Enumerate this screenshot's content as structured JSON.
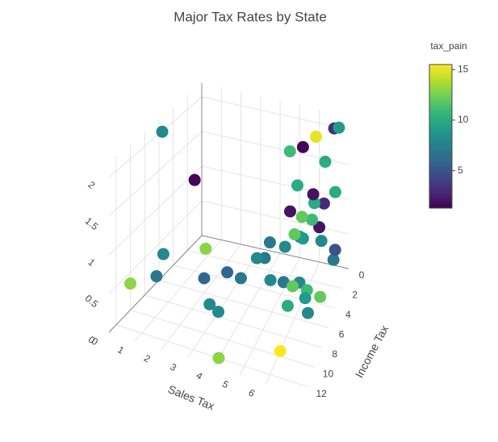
{
  "chart_data": {
    "type": "scatter3d",
    "title": "Major Tax Rates by State",
    "xlabel": "Sales Tax",
    "ylabel": "Income Tax",
    "x": [
      5.6,
      5.0,
      6.0,
      6.2,
      5.5,
      6.5,
      4.5,
      4.0,
      6.8,
      7.0,
      6.9,
      6.0,
      5.0,
      4.5,
      4.0,
      3.5,
      3.0,
      2.5,
      5.5,
      6.5,
      5.8,
      4.8,
      6.3,
      5.2,
      6.0,
      5.6,
      5.0,
      4.5,
      6.5,
      6.8,
      6.0,
      5.5,
      7.0,
      6.2,
      7.0,
      0.3,
      0.0,
      1.5,
      0.0,
      0.5,
      0.5,
      2.0,
      2.5,
      3.0,
      6.0,
      6.0,
      4.0
    ],
    "y": [
      2.8,
      3.5,
      3.0,
      4.5,
      5.0,
      5.5,
      4.0,
      3.0,
      4.0,
      1.5,
      0.5,
      0.0,
      0.0,
      1.0,
      2.0,
      2.5,
      3.5,
      4.0,
      1.5,
      2.0,
      0.8,
      1.2,
      0.3,
      2.0,
      1.2,
      2.2,
      0.5,
      0.0,
      1.0,
      0.2,
      0.8,
      1.5,
      0.0,
      2.5,
      1.0,
      6.5,
      1.0,
      4.0,
      10.0,
      7.0,
      8.0,
      6.0,
      7.0,
      7.5,
      9.5,
      6.5,
      12.0
    ],
    "z": [
      0.05,
      0.1,
      0.0,
      0.1,
      0.0,
      0.05,
      0.15,
      0.3,
      0.1,
      0.3,
      0.3,
      0.5,
      0.3,
      0.25,
      0.4,
      0.2,
      0.0,
      0.1,
      0.5,
      0.6,
      0.7,
      0.8,
      0.9,
      0.6,
      1.0,
      0.9,
      1.1,
      1.5,
      1.6,
      2.0,
      1.9,
      1.8,
      2.0,
      1.3,
      1.2,
      2.1,
      0.9,
      0.35,
      0.35,
      0.5,
      0.3,
      0.2,
      0.0,
      0.0,
      0.0,
      0.5,
      0.0
    ],
    "color_values": [
      8,
      7,
      11,
      9,
      10,
      8,
      8,
      7,
      12,
      7,
      5,
      2,
      8,
      8,
      7,
      8,
      7,
      6,
      9,
      8,
      11,
      2,
      3,
      12,
      10,
      12,
      10,
      11,
      10,
      3,
      15,
      1.5,
      9,
      2,
      10,
      8,
      1.5,
      13,
      13,
      8,
      7,
      6,
      8,
      8,
      15.5,
      12,
      13
    ],
    "xlim": [
      0,
      7.5
    ],
    "ylim": [
      0,
      13
    ],
    "zlim": [
      0,
      2.2
    ],
    "xticks": [
      0,
      1,
      2,
      3,
      4,
      5,
      6
    ],
    "yticks": [
      0,
      2,
      4,
      6,
      8,
      10,
      12
    ],
    "zticks": [
      0,
      0.5,
      1,
      1.5,
      2
    ],
    "grid": true,
    "colorbar": {
      "title": "tax_pain",
      "lim": [
        1.3,
        15.5
      ],
      "ticks": [
        5,
        10,
        15
      ],
      "colorscale": [
        "#440154",
        "#482878",
        "#3e4989",
        "#31688e",
        "#26828e",
        "#1f9e89",
        "#35b779",
        "#6ece58",
        "#b5de2b",
        "#fde725"
      ]
    }
  }
}
